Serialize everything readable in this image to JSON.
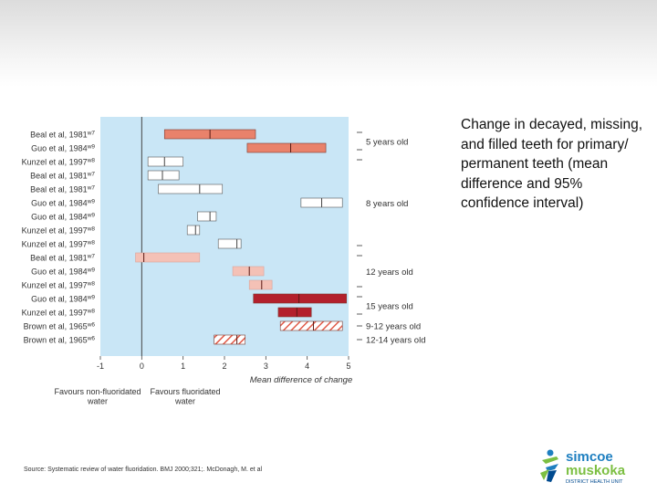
{
  "description": "Change in decayed, missing, and filled teeth for primary/ permanent teeth (mean difference and 95% confidence interval)",
  "source": "Source: Systematic review of water fluoridation. BMJ 2000;321;. McDonagh, M. et al",
  "logo": {
    "line1": "simcoe",
    "line2": "muskoka",
    "line3": "DISTRICT HEALTH UNIT",
    "colors": [
      "#1e7fc0",
      "#7cbf42",
      "#004a8f"
    ]
  },
  "chart_data": {
    "type": "forest",
    "xlabel": "Mean difference of change",
    "x_ticks": [
      -1,
      0,
      1,
      2,
      3,
      4,
      5
    ],
    "xlim": [
      -1,
      5
    ],
    "favour_labels": {
      "left": "Favours non-fluoridated water",
      "right": "Favours fluoridated water"
    },
    "colors": {
      "plot_bg": "#c9e6f6",
      "group_5": "#e9826b",
      "group_12": "#f4c1b6",
      "group_15": "#b3202c",
      "hatch": "#e05a48"
    },
    "age_groups": [
      {
        "label": "5 years old",
        "rows": [
          0,
          1
        ]
      },
      {
        "label": "8 years old",
        "rows": [
          2,
          8
        ]
      },
      {
        "label": "12 years old",
        "rows": [
          9,
          11
        ]
      },
      {
        "label": "15 years old",
        "rows": [
          12,
          13
        ]
      },
      {
        "label": "9-12 years old",
        "rows": [
          14,
          14
        ]
      },
      {
        "label": "12-14 years old",
        "rows": [
          15,
          15
        ]
      }
    ],
    "studies": [
      {
        "label": "Beal et al, 1981",
        "ref": "w7",
        "lower": 0.55,
        "mean": 1.65,
        "upper": 2.75,
        "style": "group_5"
      },
      {
        "label": "Guo et al, 1984",
        "ref": "w9",
        "lower": 2.55,
        "mean": 3.6,
        "upper": 4.45,
        "style": "group_5"
      },
      {
        "label": "Kunzel et al, 1997",
        "ref": "w8",
        "lower": 0.15,
        "mean": 0.55,
        "upper": 1.0,
        "style": "white"
      },
      {
        "label": "Beal et al, 1981",
        "ref": "w7",
        "lower": 0.15,
        "mean": 0.5,
        "upper": 0.9,
        "style": "white"
      },
      {
        "label": "Beal et al, 1981",
        "ref": "w7",
        "lower": 0.4,
        "mean": 1.4,
        "upper": 1.95,
        "style": "white"
      },
      {
        "label": "Guo et al, 1984",
        "ref": "w9",
        "lower": 3.85,
        "mean": 4.35,
        "upper": 4.85,
        "style": "white"
      },
      {
        "label": "Guo et al, 1984",
        "ref": "w9",
        "lower": 1.35,
        "mean": 1.65,
        "upper": 1.8,
        "style": "white"
      },
      {
        "label": "Kunzel et al, 1997",
        "ref": "w8",
        "lower": 1.1,
        "mean": 1.3,
        "upper": 1.4,
        "style": "white"
      },
      {
        "label": "Kunzel et al, 1997",
        "ref": "w8",
        "lower": 1.85,
        "mean": 2.3,
        "upper": 2.4,
        "style": "white"
      },
      {
        "label": "Beal et al, 1981",
        "ref": "w7",
        "lower": -0.15,
        "mean": 0.05,
        "upper": 1.4,
        "style": "group_12"
      },
      {
        "label": "Guo et al, 1984",
        "ref": "w9",
        "lower": 2.2,
        "mean": 2.6,
        "upper": 2.95,
        "style": "group_12"
      },
      {
        "label": "Kunzel et al, 1997",
        "ref": "w8",
        "lower": 2.6,
        "mean": 2.9,
        "upper": 3.15,
        "style": "group_12"
      },
      {
        "label": "Guo et al, 1984",
        "ref": "w9",
        "lower": 2.7,
        "mean": 3.8,
        "upper": 4.95,
        "style": "group_15"
      },
      {
        "label": "Kunzel et al, 1997",
        "ref": "w8",
        "lower": 3.3,
        "mean": 3.75,
        "upper": 4.1,
        "style": "group_15"
      },
      {
        "label": "Brown et al, 1965",
        "ref": "w6",
        "lower": 3.35,
        "mean": 4.15,
        "upper": 4.85,
        "style": "hatch"
      },
      {
        "label": "Brown et al, 1965",
        "ref": "w6",
        "lower": 1.75,
        "mean": 2.3,
        "upper": 2.5,
        "style": "hatch"
      }
    ]
  }
}
